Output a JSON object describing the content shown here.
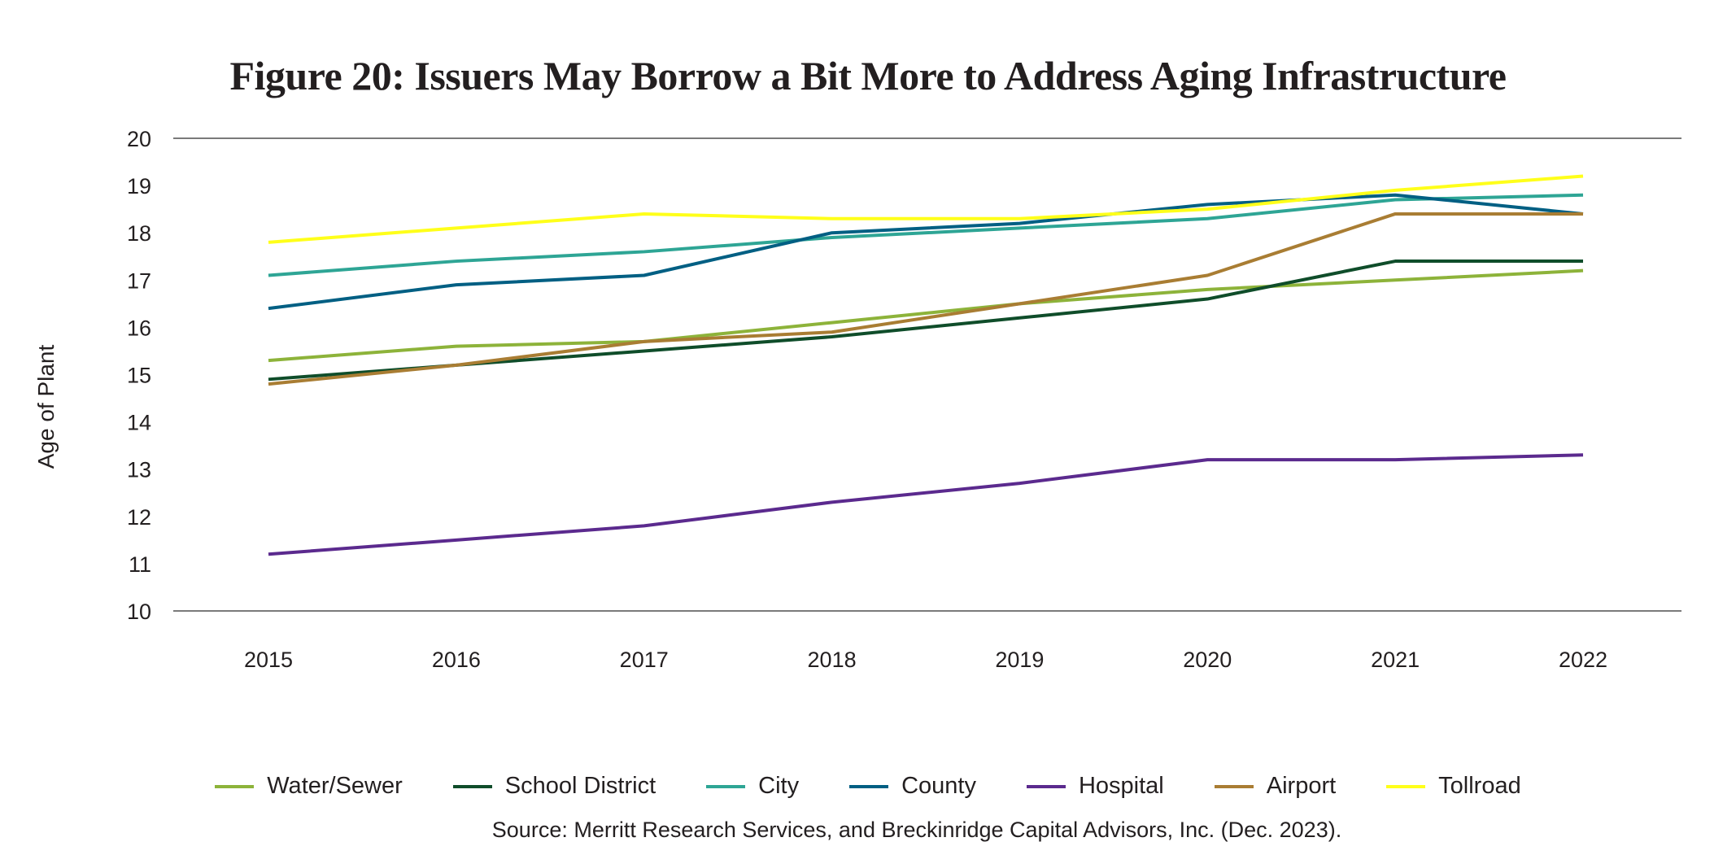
{
  "chart_data": {
    "type": "line",
    "title": "Figure 20: Issuers May Borrow a Bit More to Address Aging Infrastructure",
    "xlabel": "",
    "ylabel": "Age of Plant",
    "ylim": [
      10,
      20
    ],
    "yticks": [
      "10",
      "11",
      "12",
      "13",
      "14",
      "15",
      "16",
      "17",
      "18",
      "19",
      "20"
    ],
    "categories": [
      "2015",
      "2016",
      "2017",
      "2018",
      "2019",
      "2020",
      "2021",
      "2022"
    ],
    "grid": "top and bottom horizontal lines only",
    "legend_position": "bottom",
    "series": [
      {
        "name": "Water/Sewer",
        "color": "#8db33a",
        "values": [
          15.3,
          15.6,
          15.7,
          16.1,
          16.5,
          16.8,
          17.0,
          17.2
        ]
      },
      {
        "name": "School District",
        "color": "#0f4d2a",
        "values": [
          14.9,
          15.2,
          15.5,
          15.8,
          16.2,
          16.6,
          17.4,
          17.4
        ]
      },
      {
        "name": "City",
        "color": "#2ea595",
        "values": [
          17.1,
          17.4,
          17.6,
          17.9,
          18.1,
          18.3,
          18.7,
          18.8
        ]
      },
      {
        "name": "County",
        "color": "#005f83",
        "values": [
          16.4,
          16.9,
          17.1,
          18.0,
          18.2,
          18.6,
          18.8,
          18.4
        ]
      },
      {
        "name": "Hospital",
        "color": "#5b2a8e",
        "values": [
          11.2,
          11.5,
          11.8,
          12.3,
          12.7,
          13.2,
          13.2,
          13.3
        ]
      },
      {
        "name": "Airport",
        "color": "#a97d33",
        "values": [
          14.8,
          15.2,
          15.7,
          15.9,
          16.5,
          17.1,
          18.4,
          18.4
        ]
      },
      {
        "name": "Tollroad",
        "color": "#ffff1a",
        "values": [
          17.8,
          18.1,
          18.4,
          18.3,
          18.3,
          18.5,
          18.9,
          19.2
        ]
      }
    ],
    "source": "Source: Merritt Research Services, and Breckinridge Capital Advisors, Inc. (Dec. 2023)."
  }
}
